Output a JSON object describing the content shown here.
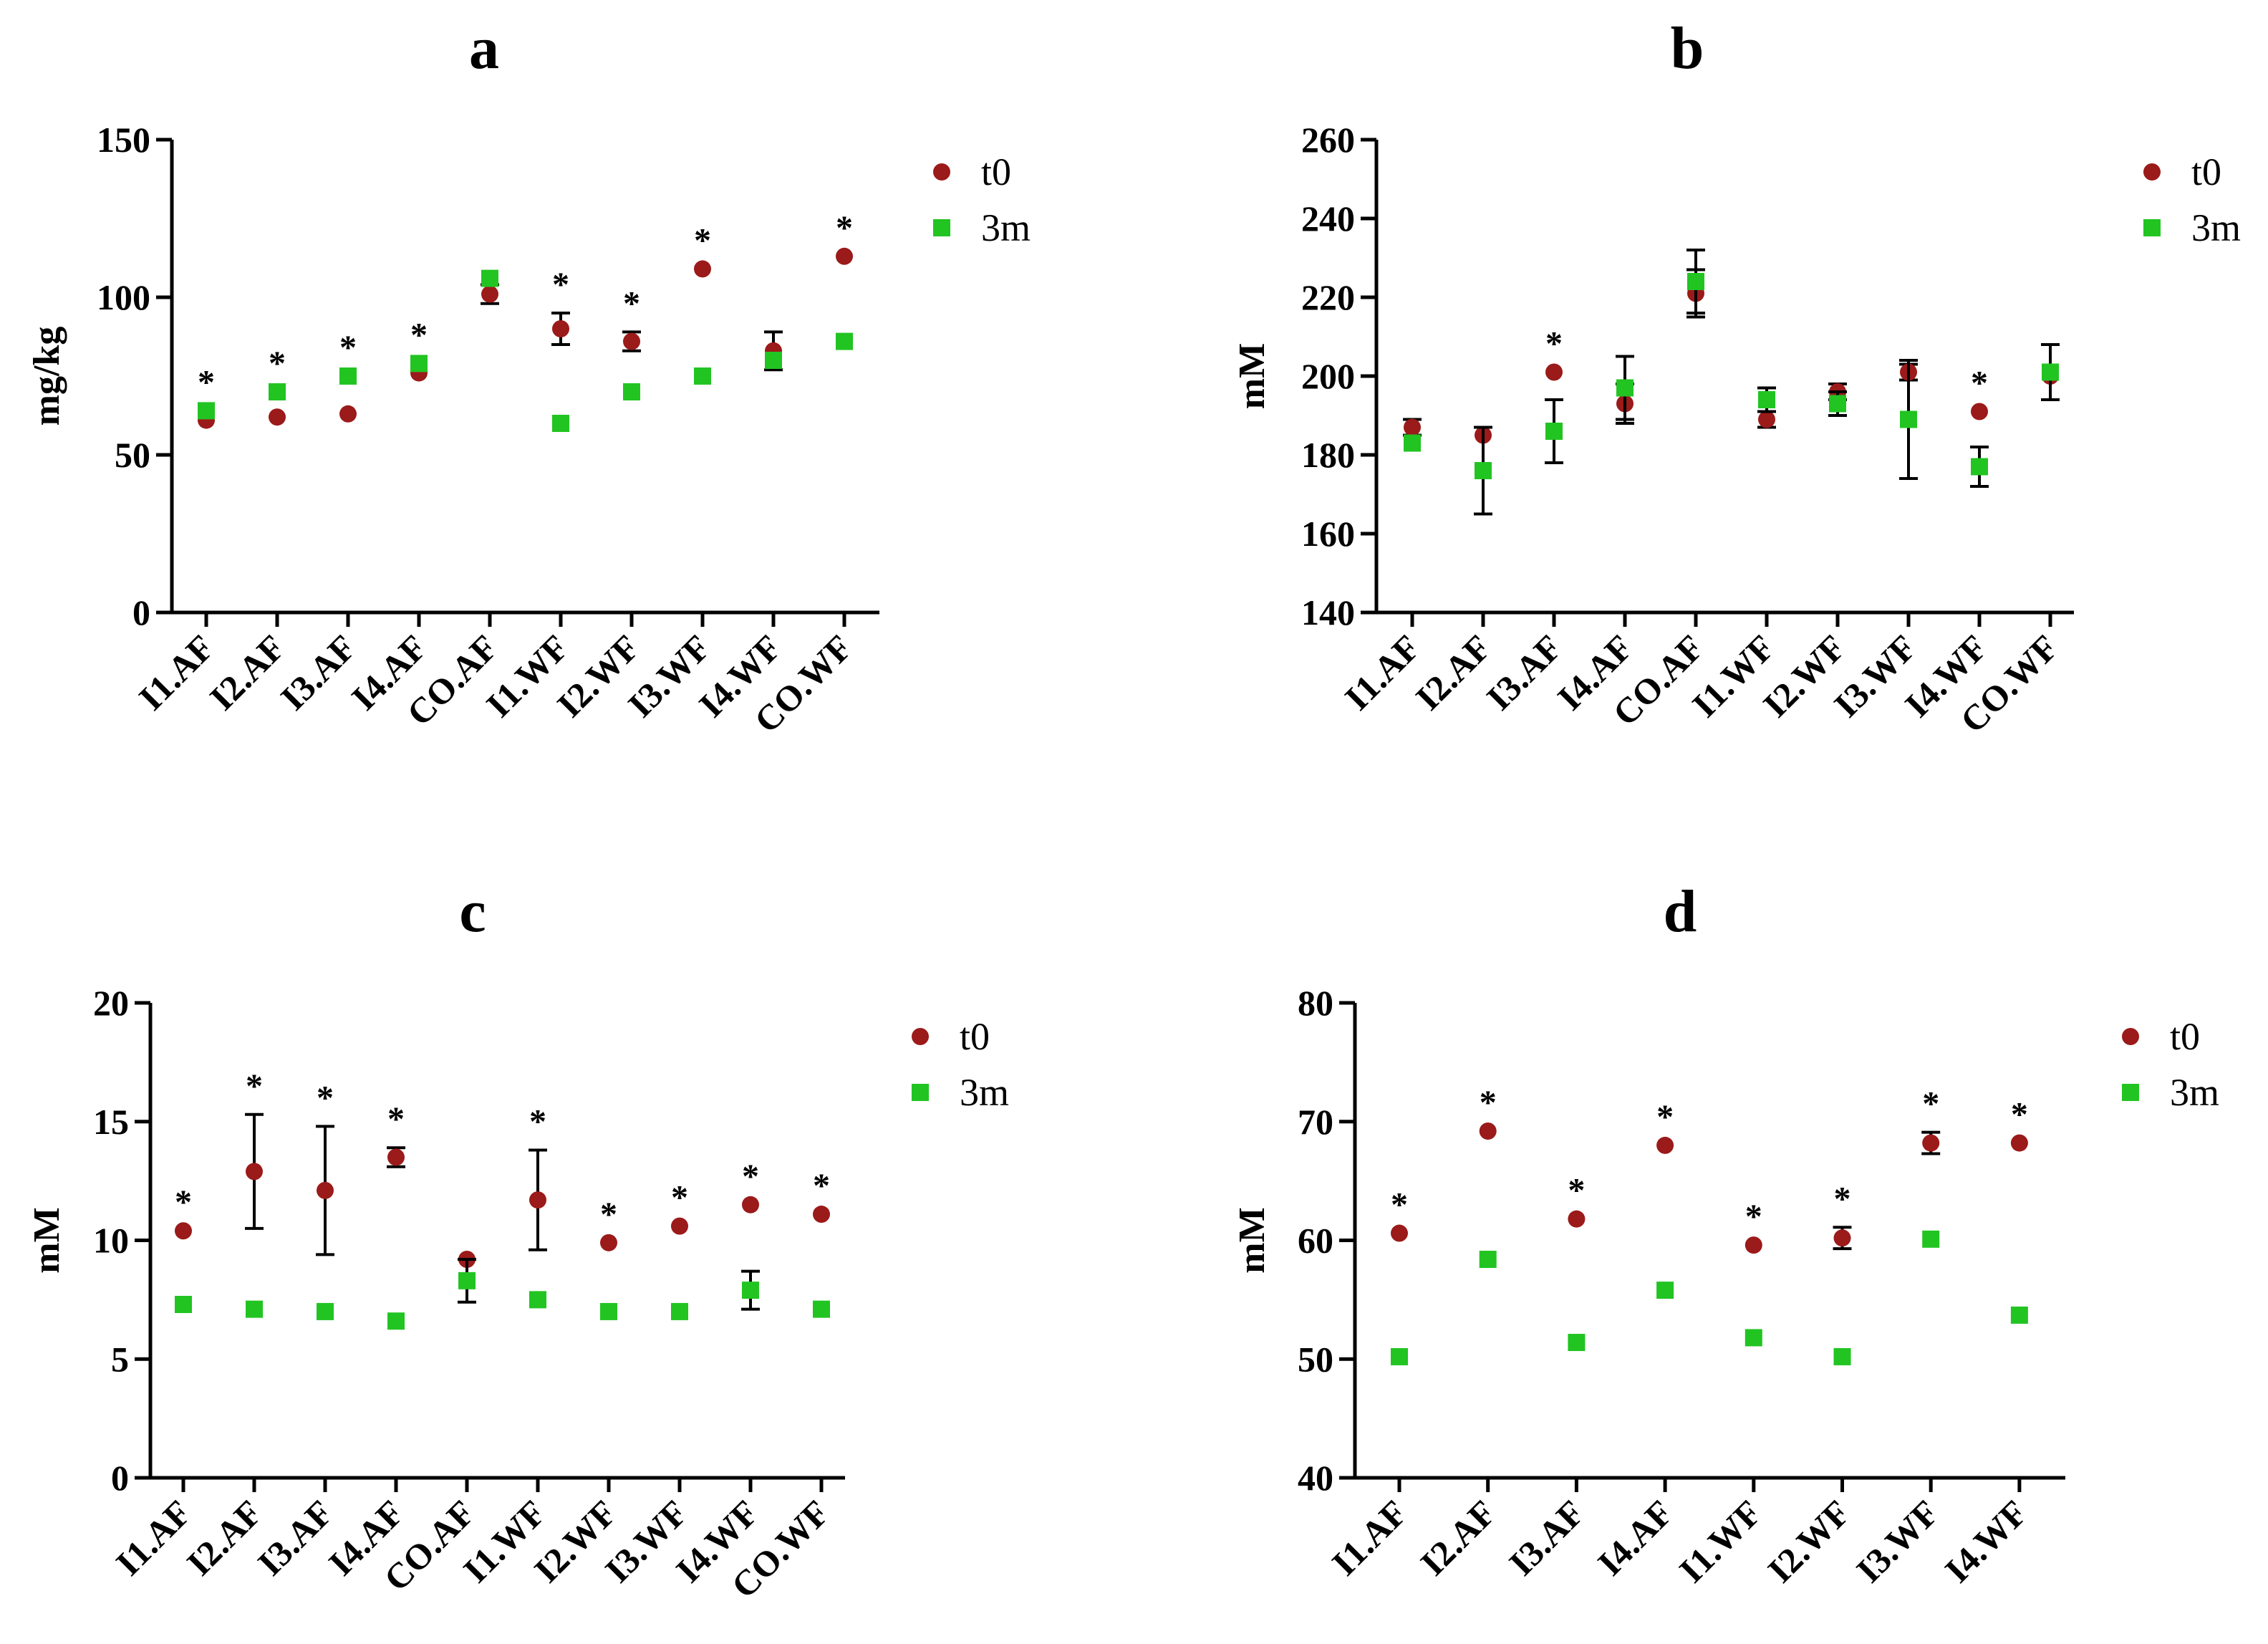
{
  "chart_data": [
    {
      "panel": "a",
      "type": "scatter",
      "title": "a",
      "xlabel": "",
      "ylabel": "mg/kg",
      "ylim": [
        0,
        150
      ],
      "yticks": [
        "0",
        "50",
        "100",
        "150"
      ],
      "categories": [
        "I1.AF",
        "I2.AF",
        "I3.AF",
        "I4.AF",
        "CO.AF",
        "I1.WF",
        "I2.WF",
        "I3.WF",
        "I4.WF",
        "CO.WF"
      ],
      "series": [
        {
          "name": "t0",
          "values": [
            61,
            62,
            63,
            76,
            101,
            90,
            86,
            109,
            83,
            113
          ],
          "errors": [
            0,
            0,
            0,
            0,
            3,
            5,
            3,
            0,
            6,
            0
          ]
        },
        {
          "name": "3m",
          "values": [
            64,
            70,
            75,
            79,
            106,
            60,
            70,
            75,
            80,
            86
          ],
          "errors": [
            0,
            0,
            0,
            0,
            0,
            0,
            0,
            0,
            0,
            0
          ]
        }
      ],
      "significance": [
        "*",
        "*",
        "*",
        "*",
        "",
        "*",
        "*",
        "*",
        "",
        "*"
      ],
      "colors": {
        "t0": "#9b1a1a",
        "3m": "#22c422"
      }
    },
    {
      "panel": "b",
      "type": "scatter",
      "title": "b",
      "xlabel": "",
      "ylabel": "mM",
      "ylim": [
        140,
        260
      ],
      "yticks": [
        "140",
        "160",
        "180",
        "200",
        "220",
        "240",
        "260"
      ],
      "categories": [
        "I1.AF",
        "I2.AF",
        "I3.AF",
        "I4.AF",
        "CO.AF",
        "I1.WF",
        "I2.WF",
        "I3.WF",
        "I4.WF",
        "CO.WF"
      ],
      "series": [
        {
          "name": "t0",
          "values": [
            187,
            185,
            201,
            193,
            221,
            189,
            196,
            201,
            191,
            200
          ],
          "errors": [
            2,
            0,
            0,
            5,
            6,
            2,
            2,
            2,
            0,
            0
          ]
        },
        {
          "name": "3m",
          "values": [
            183,
            176,
            186,
            197,
            224,
            194,
            193,
            189,
            177,
            201
          ],
          "errors": [
            0,
            11,
            8,
            8,
            8,
            3,
            3,
            15,
            5,
            7
          ]
        }
      ],
      "significance": [
        "",
        "",
        "*",
        "",
        "",
        "",
        "",
        "",
        "*",
        ""
      ],
      "colors": {
        "t0": "#9b1a1a",
        "3m": "#22c422"
      }
    },
    {
      "panel": "c",
      "type": "scatter",
      "title": "c",
      "xlabel": "",
      "ylabel": "mM",
      "ylim": [
        0,
        20
      ],
      "yticks": [
        "0",
        "5",
        "10",
        "15",
        "20"
      ],
      "categories": [
        "I1.AF",
        "I2.AF",
        "I3.AF",
        "I4.AF",
        "CO.AF",
        "I1.WF",
        "I2.WF",
        "I3.WF",
        "I4.WF",
        "CO.WF"
      ],
      "series": [
        {
          "name": "t0",
          "values": [
            10.4,
            12.9,
            12.1,
            13.5,
            9.2,
            11.7,
            9.9,
            10.6,
            11.5,
            11.1
          ],
          "errors": [
            0,
            2.4,
            2.7,
            0.4,
            0,
            2.1,
            0,
            0,
            0,
            0
          ]
        },
        {
          "name": "3m",
          "values": [
            7.3,
            7.1,
            7.0,
            6.6,
            8.3,
            7.5,
            7.0,
            7.0,
            7.9,
            7.1
          ],
          "errors": [
            0,
            0,
            0,
            0,
            0.9,
            0,
            0,
            0,
            0.8,
            0
          ]
        }
      ],
      "significance": [
        "*",
        "*",
        "*",
        "*",
        "",
        "*",
        "*",
        "*",
        "*",
        "*"
      ],
      "colors": {
        "t0": "#9b1a1a",
        "3m": "#22c422"
      }
    },
    {
      "panel": "d",
      "type": "scatter",
      "title": "d",
      "xlabel": "",
      "ylabel": "mM",
      "ylim": [
        40,
        80
      ],
      "yticks": [
        "40",
        "50",
        "60",
        "70",
        "80"
      ],
      "categories": [
        "I1.AF",
        "I2.AF",
        "I3.AF",
        "I4.AF",
        "I1.WF",
        "I2.WF",
        "I3.WF",
        "I4.WF"
      ],
      "series": [
        {
          "name": "t0",
          "values": [
            60.6,
            69.2,
            61.8,
            68.0,
            59.6,
            60.2,
            68.2,
            68.2
          ],
          "errors": [
            0,
            0,
            0,
            0,
            0,
            0.9,
            0.9,
            0
          ]
        },
        {
          "name": "3m",
          "values": [
            50.2,
            58.4,
            51.4,
            55.8,
            51.8,
            50.2,
            60.1,
            53.7
          ],
          "errors": [
            0,
            0,
            0,
            0,
            0,
            0,
            0,
            0
          ]
        }
      ],
      "significance": [
        "*",
        "*",
        "*",
        "*",
        "*",
        "*",
        "*",
        "*"
      ],
      "colors": {
        "t0": "#9b1a1a",
        "3m": "#22c422"
      }
    }
  ]
}
